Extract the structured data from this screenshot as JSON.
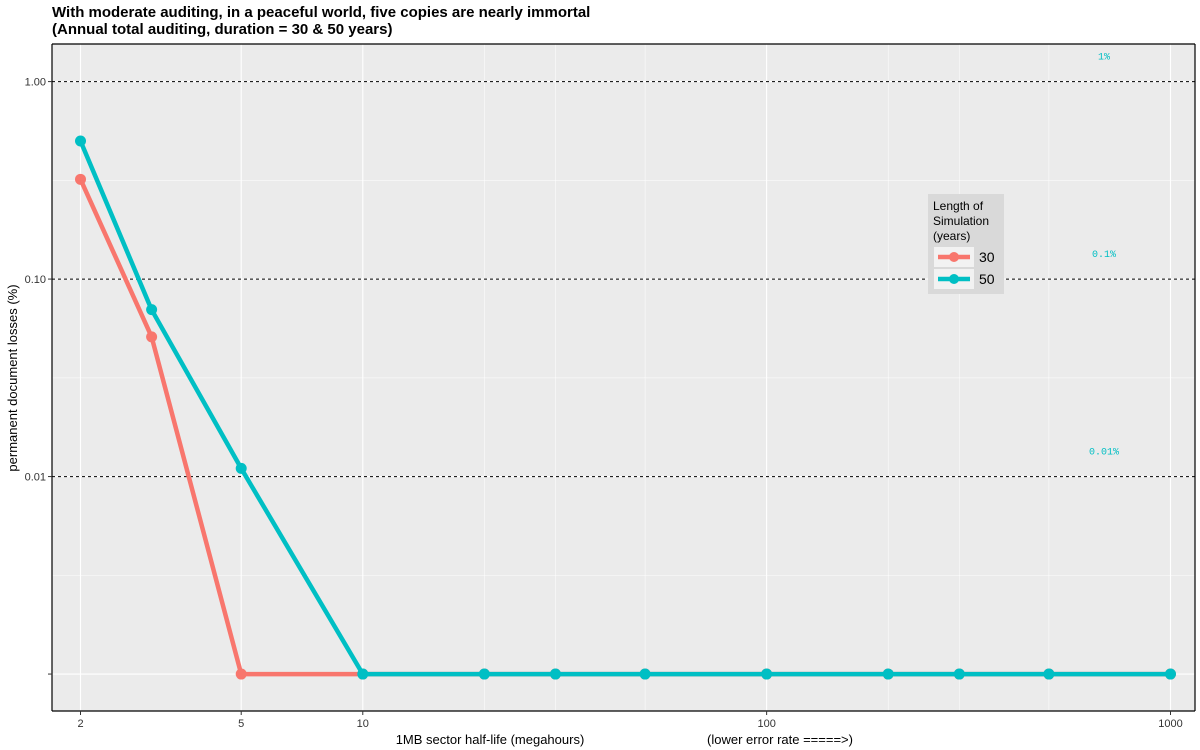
{
  "chart_data": {
    "type": "line",
    "title": "With moderate auditing, in a peaceful world, five copies are nearly immortal",
    "subtitle": "(Annual total auditing, duration = 30 & 50 years)",
    "xlabel": "1MB sector half-life (megahours)",
    "xlabel_note": "(lower error rate =====>)",
    "ylabel": "permanent document losses (%)",
    "x_scale": "log",
    "y_scale": "log",
    "xlim": [
      1.7,
      1150
    ],
    "ylim": [
      0.00065,
      1.55
    ],
    "x_ticks": [
      2,
      5,
      10,
      100,
      1000
    ],
    "x_tick_labels": [
      "2",
      "5",
      "10",
      "100",
      "1000"
    ],
    "y_ticks": [
      0.001,
      0.01,
      0.1,
      1.0
    ],
    "y_tick_labels": [
      "",
      "0.01",
      "0.10",
      "1.00"
    ],
    "grid": true,
    "reference_lines": [
      {
        "y": 1.0,
        "label": "1%"
      },
      {
        "y": 0.1,
        "label": "0.1%"
      },
      {
        "y": 0.01,
        "label": "0.01%"
      }
    ],
    "legend": {
      "title": [
        "Length of",
        "Simulation",
        "(years)"
      ],
      "placement": "inside-right"
    },
    "series": [
      {
        "name": "30",
        "color": "#F8766D",
        "x": [
          2,
          3,
          5,
          10,
          20,
          30,
          50,
          100,
          200,
          300,
          500,
          1000
        ],
        "y": [
          0.32,
          0.051,
          0.001,
          0.001,
          0.001,
          0.001,
          0.001,
          0.001,
          0.001,
          0.001,
          0.001,
          0.001
        ]
      },
      {
        "name": "50",
        "color": "#00BFC4",
        "x": [
          2,
          3,
          5,
          10,
          20,
          30,
          50,
          100,
          200,
          300,
          500,
          1000
        ],
        "y": [
          0.5,
          0.07,
          0.011,
          0.001,
          0.001,
          0.001,
          0.001,
          0.001,
          0.001,
          0.001,
          0.001,
          0.001
        ]
      }
    ]
  }
}
